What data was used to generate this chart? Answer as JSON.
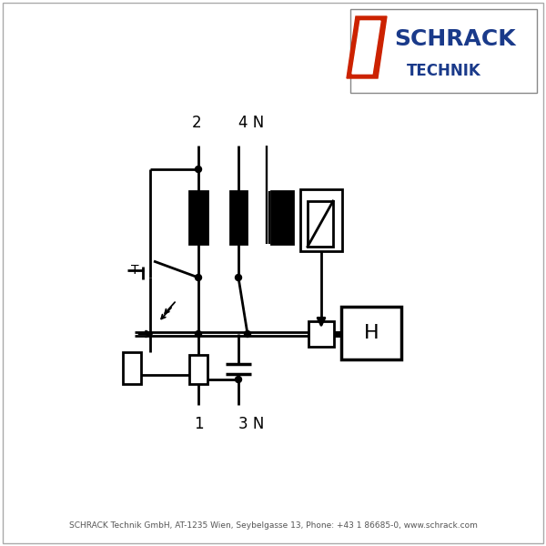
{
  "bg_color": "#ffffff",
  "lc": "#000000",
  "logo_blue": "#1a3a8a",
  "logo_red": "#cc2200",
  "footer": "SCHRACK Technik GmbH, AT-1235 Wien, Seybelgasse 13, Phone: +43 1 86685-0, www.schrack.com",
  "lw": 2.0,
  "label_2": "2",
  "label_4N": "4 N",
  "label_1": "1",
  "label_3N": "3 N",
  "label_H": "H"
}
